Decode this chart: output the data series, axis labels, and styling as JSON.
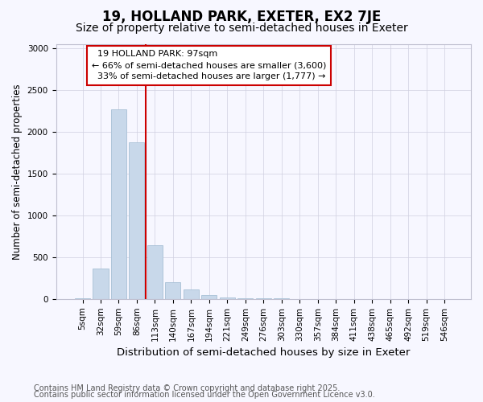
{
  "title": "19, HOLLAND PARK, EXETER, EX2 7JE",
  "subtitle": "Size of property relative to semi-detached houses in Exeter",
  "xlabel": "Distribution of semi-detached houses by size in Exeter",
  "ylabel": "Number of semi-detached properties",
  "categories": [
    "5sqm",
    "32sqm",
    "59sqm",
    "86sqm",
    "113sqm",
    "140sqm",
    "167sqm",
    "194sqm",
    "221sqm",
    "249sqm",
    "276sqm",
    "303sqm",
    "330sqm",
    "357sqm",
    "384sqm",
    "411sqm",
    "438sqm",
    "465sqm",
    "492sqm",
    "519sqm",
    "546sqm"
  ],
  "values": [
    5,
    360,
    2270,
    1880,
    640,
    200,
    110,
    50,
    20,
    10,
    5,
    5,
    3,
    2,
    1,
    1,
    1,
    0,
    0,
    0,
    0
  ],
  "bar_color": "#c8d8ea",
  "bar_edge_color": "#a8c0d6",
  "red_line_x": 3.5,
  "red_line_label": "19 HOLLAND PARK: 97sqm",
  "pct_smaller": "66%",
  "pct_smaller_count": "3,600",
  "pct_larger": "33%",
  "pct_larger_count": "1,777",
  "annotation_box_color": "#cc0000",
  "ylim": [
    0,
    3050
  ],
  "footnote1": "Contains HM Land Registry data © Crown copyright and database right 2025.",
  "footnote2": "Contains public sector information licensed under the Open Government Licence v3.0.",
  "background_color": "#f7f7ff",
  "title_fontsize": 12,
  "subtitle_fontsize": 10,
  "xlabel_fontsize": 9.5,
  "ylabel_fontsize": 8.5,
  "tick_fontsize": 7.5,
  "footnote_fontsize": 7,
  "ann_fontsize": 8
}
